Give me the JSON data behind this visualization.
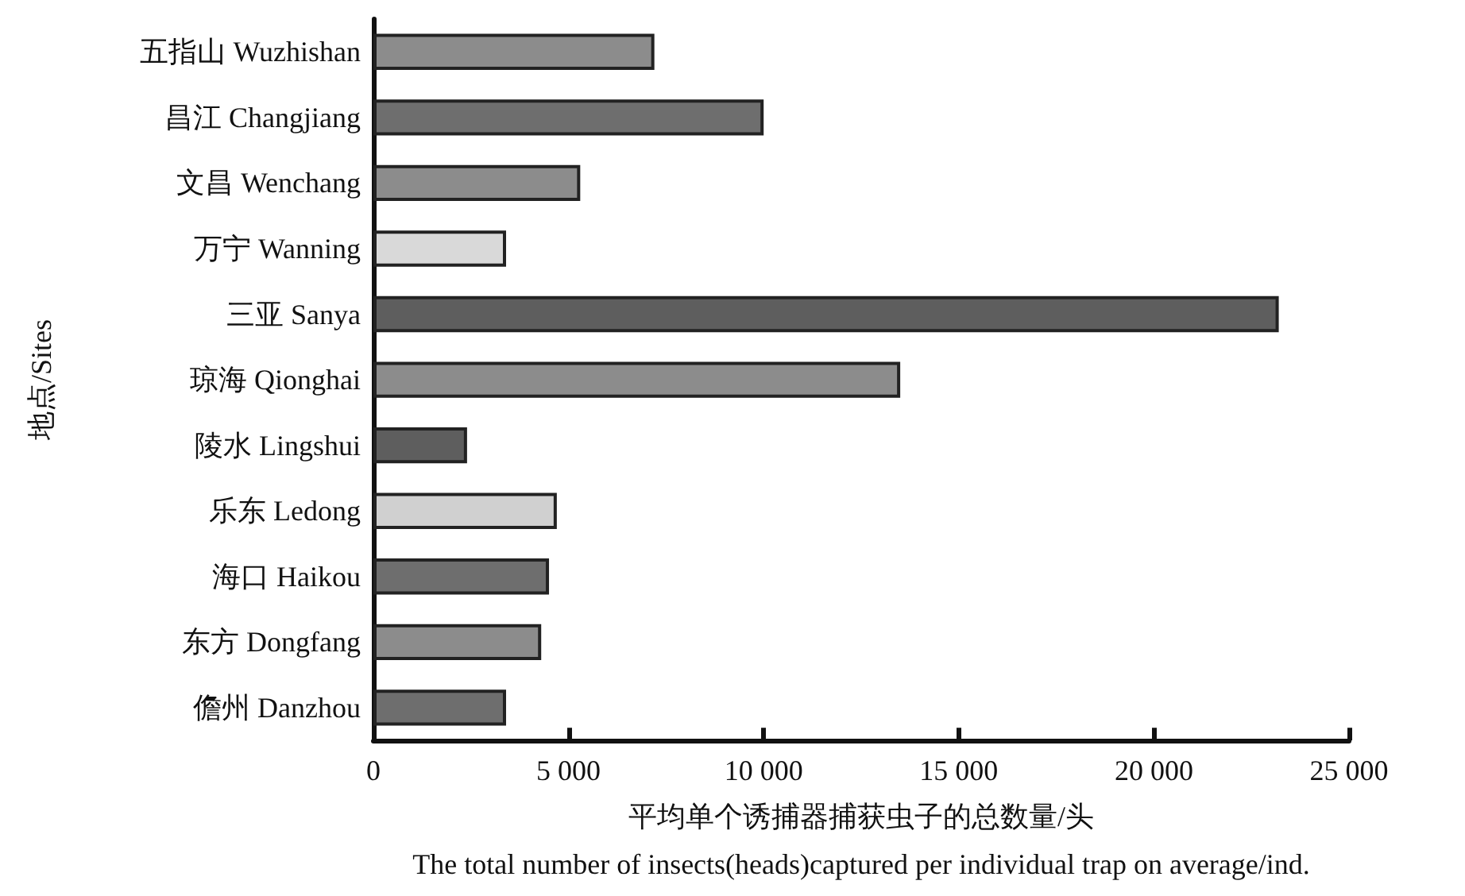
{
  "chart_data": {
    "type": "bar",
    "orientation": "horizontal",
    "categories": [
      "五指山 Wuzhishan",
      "昌江 Changjiang",
      "文昌 Wenchang",
      "万宁 Wanning",
      "三亚 Sanya",
      "琼海 Qionghai",
      "陵水 Lingshui",
      "乐东 Ledong",
      "海口 Haikou",
      "东方 Dongfang",
      "儋州 Danzhou"
    ],
    "values": [
      7200,
      10000,
      5300,
      3400,
      23200,
      13500,
      2400,
      4700,
      4500,
      4300,
      3400
    ],
    "colors": [
      "#8c8c8c",
      "#6e6e6e",
      "#8c8c8c",
      "#d9d9d9",
      "#5e5e5e",
      "#8c8c8c",
      "#5e5e5e",
      "#d0d0d0",
      "#6e6e6e",
      "#8c8c8c",
      "#6e6e6e"
    ],
    "xlim": [
      0,
      25000
    ],
    "xticks": [
      0,
      {
        "value": 5000,
        "label": "5 000"
      },
      {
        "value": 10000,
        "label": "10 000"
      },
      {
        "value": 15000,
        "label": "15 000"
      },
      {
        "value": 20000,
        "label": "20 000"
      },
      {
        "value": 25000,
        "label": "25 000"
      }
    ],
    "xlabel": "平均单个诱捕器捕获虫子的总数量/头\nThe total number of insects(heads)captured per individual trap on average/ind.",
    "ylabel": "地点/Sites",
    "grid": false
  }
}
